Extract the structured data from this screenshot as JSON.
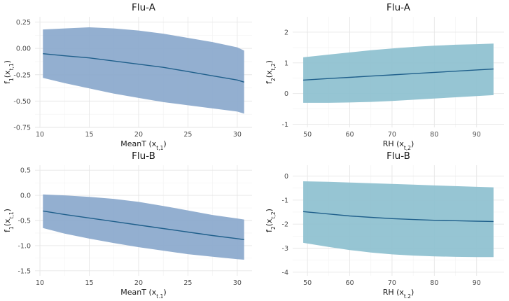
{
  "chart_data": [
    {
      "type": "area",
      "title": "Flu-A",
      "xlabel": "MeanT (x_{t,1})",
      "ylabel": "f_1(x_{t,1})",
      "xlim": [
        9.5,
        31.5
      ],
      "ylim": [
        -0.75,
        0.3
      ],
      "xticks": [
        10,
        15,
        20,
        25,
        30
      ],
      "yticks": [
        -0.75,
        -0.5,
        -0.25,
        0.0,
        0.25
      ],
      "ytick_labels": [
        "-0.75",
        "-0.50",
        "-0.25",
        "0.00",
        "0.25"
      ],
      "grid": true,
      "band_color": "#8aa8cc",
      "line_color": "#1f5f8b",
      "x": [
        10.3,
        12.5,
        15,
        17.5,
        20,
        22.5,
        25,
        27.5,
        30,
        30.7
      ],
      "series": [
        {
          "name": "",
          "values": [
            -0.05,
            -0.07,
            -0.09,
            -0.12,
            -0.15,
            -0.18,
            -0.22,
            -0.26,
            -0.3,
            -0.32
          ]
        }
      ],
      "lower": [
        -0.28,
        -0.33,
        -0.38,
        -0.43,
        -0.47,
        -0.51,
        -0.54,
        -0.57,
        -0.6,
        -0.62
      ],
      "upper": [
        0.18,
        0.19,
        0.2,
        0.19,
        0.17,
        0.14,
        0.1,
        0.06,
        0.01,
        -0.02
      ]
    },
    {
      "type": "area",
      "title": "Flu-A",
      "xlabel": "RH (x_{t,2})",
      "ylabel": "f_2(x_{t,2})",
      "xlim": [
        46.5,
        96.5
      ],
      "ylim": [
        -1.1,
        2.5
      ],
      "xticks": [
        50,
        60,
        70,
        80,
        90
      ],
      "yticks": [
        -1,
        0,
        1,
        2
      ],
      "ytick_labels": [
        "-1",
        "0",
        "1",
        "2"
      ],
      "grid": true,
      "band_color": "#8dc0cf",
      "line_color": "#1f5f8b",
      "x": [
        49,
        55,
        60,
        65,
        70,
        75,
        80,
        85,
        90,
        94
      ],
      "series": [
        {
          "name": "",
          "values": [
            0.44,
            0.49,
            0.53,
            0.57,
            0.61,
            0.65,
            0.69,
            0.73,
            0.77,
            0.8
          ]
        }
      ],
      "lower": [
        -0.3,
        -0.3,
        -0.29,
        -0.27,
        -0.24,
        -0.2,
        -0.16,
        -0.12,
        -0.08,
        -0.05
      ],
      "upper": [
        1.18,
        1.27,
        1.34,
        1.41,
        1.47,
        1.52,
        1.56,
        1.59,
        1.61,
        1.63
      ]
    },
    {
      "type": "area",
      "title": "Flu-B",
      "xlabel": "MeanT (x_{t,1})",
      "ylabel": "f_1(x_{t,1})",
      "xlim": [
        9.5,
        31.5
      ],
      "ylim": [
        -1.6,
        0.6
      ],
      "xticks": [
        10,
        15,
        20,
        25,
        30
      ],
      "yticks": [
        -1.5,
        -1.0,
        -0.5,
        0.0,
        0.5
      ],
      "ytick_labels": [
        "-1.5",
        "-1.0",
        "-0.5",
        "0.0",
        "0.5"
      ],
      "grid": true,
      "band_color": "#8aa8cc",
      "line_color": "#1f5f8b",
      "x": [
        10.3,
        12.5,
        15,
        17.5,
        20,
        22.5,
        25,
        27.5,
        30,
        30.7
      ],
      "series": [
        {
          "name": "",
          "values": [
            -0.31,
            -0.38,
            -0.45,
            -0.52,
            -0.59,
            -0.66,
            -0.73,
            -0.8,
            -0.86,
            -0.88
          ]
        }
      ],
      "lower": [
        -0.65,
        -0.76,
        -0.86,
        -0.95,
        -1.03,
        -1.1,
        -1.17,
        -1.22,
        -1.27,
        -1.28
      ],
      "upper": [
        0.02,
        0.0,
        -0.03,
        -0.07,
        -0.13,
        -0.21,
        -0.3,
        -0.39,
        -0.46,
        -0.48
      ]
    },
    {
      "type": "area",
      "title": "Flu-B",
      "xlabel": "RH (x_{t,2})",
      "ylabel": "f_2(x_{t,2})",
      "xlim": [
        46.5,
        96.5
      ],
      "ylim": [
        -4.15,
        0.45
      ],
      "xticks": [
        50,
        60,
        70,
        80,
        90
      ],
      "yticks": [
        -4,
        -3,
        -2,
        -1,
        0
      ],
      "ytick_labels": [
        "-4",
        "-3",
        "-2",
        "-1",
        "0"
      ],
      "grid": true,
      "band_color": "#8dc0cf",
      "line_color": "#1f5f8b",
      "x": [
        49,
        55,
        60,
        65,
        70,
        75,
        80,
        85,
        90,
        94
      ],
      "series": [
        {
          "name": "",
          "values": [
            -1.48,
            -1.58,
            -1.66,
            -1.72,
            -1.77,
            -1.81,
            -1.84,
            -1.86,
            -1.88,
            -1.89
          ]
        }
      ],
      "lower": [
        -2.78,
        -2.95,
        -3.08,
        -3.18,
        -3.26,
        -3.31,
        -3.34,
        -3.36,
        -3.37,
        -3.37
      ],
      "upper": [
        -0.22,
        -0.24,
        -0.27,
        -0.3,
        -0.33,
        -0.36,
        -0.39,
        -0.42,
        -0.45,
        -0.47
      ]
    }
  ]
}
